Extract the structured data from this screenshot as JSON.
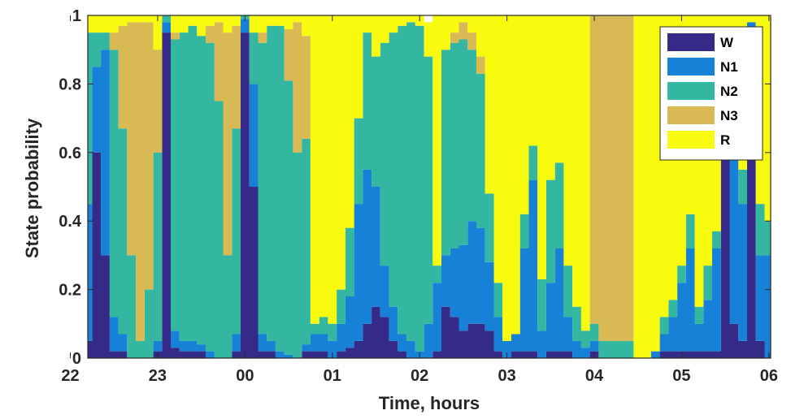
{
  "chart_data": {
    "type": "area",
    "stacked": true,
    "xlabel": "Time, hours",
    "ylabel": "State probability",
    "xlim": [
      22.2,
      30.02
    ],
    "ylim": [
      0,
      1
    ],
    "x_ticks": [
      22,
      23,
      24,
      25,
      26,
      27,
      28,
      29,
      30
    ],
    "x_tick_labels": [
      "22",
      "23",
      "00",
      "01",
      "02",
      "03",
      "04",
      "05",
      "06"
    ],
    "y_ticks": [
      0,
      0.2,
      0.4,
      0.6,
      0.8,
      1
    ],
    "y_tick_labels": [
      "0",
      "0.2",
      "0.4",
      "0.6",
      "0.8",
      "1"
    ],
    "grid": false,
    "legend": {
      "position": "top-right"
    },
    "series_colors": {
      "W": "#352a87",
      "N1": "#1781d8",
      "N2": "#33b7a0",
      "N3": "#d8b954",
      "R": "#f9fb0e"
    },
    "x": [
      22.2,
      22.3,
      22.4,
      22.5,
      22.6,
      22.7,
      22.8,
      22.9,
      23.0,
      23.1,
      23.2,
      23.3,
      23.4,
      23.5,
      23.6,
      23.7,
      23.8,
      23.9,
      24.0,
      24.1,
      24.2,
      24.3,
      24.4,
      24.5,
      24.6,
      24.7,
      24.8,
      24.9,
      25.0,
      25.1,
      25.2,
      25.3,
      25.4,
      25.5,
      25.6,
      25.7,
      25.8,
      25.9,
      26.0,
      26.1,
      26.2,
      26.3,
      26.4,
      26.5,
      26.6,
      26.7,
      26.8,
      26.9,
      27.0,
      27.1,
      27.2,
      27.3,
      27.4,
      27.5,
      27.6,
      27.7,
      27.8,
      27.9,
      28.0,
      28.1,
      28.2,
      28.3,
      28.4,
      28.5,
      28.6,
      28.7,
      28.8,
      28.9,
      29.0,
      29.1,
      29.2,
      29.3,
      29.4,
      29.5,
      29.6,
      29.7,
      29.8,
      29.9,
      30.0
    ],
    "series": [
      {
        "name": "W",
        "values": [
          0.05,
          0.6,
          0.3,
          0.02,
          0.02,
          0.0,
          0.0,
          0.0,
          0.02,
          0.95,
          0.03,
          0.02,
          0.02,
          0.02,
          0.0,
          0.0,
          0.0,
          0.02,
          0.95,
          0.5,
          0.02,
          0.02,
          0.0,
          0.0,
          0.0,
          0.02,
          0.02,
          0.02,
          0.0,
          0.02,
          0.03,
          0.05,
          0.1,
          0.15,
          0.12,
          0.05,
          0.02,
          0.0,
          0.0,
          0.0,
          0.02,
          0.15,
          0.12,
          0.08,
          0.1,
          0.1,
          0.08,
          0.02,
          0.0,
          0.02,
          0.02,
          0.02,
          0.0,
          0.02,
          0.02,
          0.02,
          0.0,
          0.0,
          0.02,
          0.0,
          0.0,
          0.0,
          0.0,
          0.0,
          0.0,
          0.0,
          0.02,
          0.02,
          0.02,
          0.02,
          0.02,
          0.02,
          0.02,
          0.9,
          0.1,
          0.05,
          0.95,
          0.05,
          0.0
        ]
      },
      {
        "name": "N1",
        "values": [
          0.4,
          0.25,
          0.6,
          0.1,
          0.05,
          0.0,
          0.0,
          0.0,
          0.03,
          0.03,
          0.05,
          0.03,
          0.03,
          0.02,
          0.02,
          0.0,
          0.0,
          0.05,
          0.04,
          0.3,
          0.05,
          0.03,
          0.02,
          0.01,
          0.0,
          0.02,
          0.05,
          0.05,
          0.05,
          0.08,
          0.15,
          0.4,
          0.45,
          0.35,
          0.15,
          0.1,
          0.05,
          0.05,
          0.02,
          0.1,
          0.2,
          0.15,
          0.2,
          0.25,
          0.3,
          0.28,
          0.2,
          0.1,
          0.05,
          0.05,
          0.3,
          0.5,
          0.08,
          0.2,
          0.3,
          0.1,
          0.05,
          0.03,
          0.03,
          0.0,
          0.0,
          0.0,
          0.0,
          0.0,
          0.0,
          0.02,
          0.05,
          0.1,
          0.2,
          0.3,
          0.08,
          0.15,
          0.3,
          0.05,
          0.5,
          0.4,
          0.03,
          0.25,
          0.3
        ]
      },
      {
        "name": "N2",
        "values": [
          0.5,
          0.1,
          0.05,
          0.78,
          0.6,
          0.3,
          0.05,
          0.2,
          0.55,
          0.02,
          0.85,
          0.9,
          0.92,
          0.9,
          0.9,
          0.75,
          0.3,
          0.6,
          0.01,
          0.15,
          0.85,
          0.92,
          0.95,
          0.8,
          0.6,
          0.6,
          0.03,
          0.05,
          0.05,
          0.1,
          0.2,
          0.25,
          0.4,
          0.38,
          0.65,
          0.8,
          0.9,
          0.93,
          0.95,
          0.78,
          0.05,
          0.6,
          0.6,
          0.6,
          0.5,
          0.45,
          0.2,
          0.1,
          0.0,
          0.0,
          0.1,
          0.1,
          0.15,
          0.3,
          0.25,
          0.15,
          0.1,
          0.05,
          0.05,
          0.05,
          0.05,
          0.05,
          0.05,
          0.0,
          0.0,
          0.0,
          0.05,
          0.05,
          0.05,
          0.1,
          0.05,
          0.1,
          0.05,
          0.0,
          0.05,
          0.1,
          0.0,
          0.15,
          0.1
        ]
      },
      {
        "name": "N3",
        "values": [
          0.0,
          0.0,
          0.0,
          0.05,
          0.3,
          0.68,
          0.93,
          0.78,
          0.3,
          0.0,
          0.02,
          0.0,
          0.0,
          0.0,
          0.05,
          0.23,
          0.65,
          0.3,
          0.0,
          0.0,
          0.03,
          0.0,
          0.0,
          0.15,
          0.38,
          0.3,
          0.0,
          0.0,
          0.0,
          0.0,
          0.0,
          0.0,
          0.0,
          0.0,
          0.0,
          0.0,
          0.0,
          0.0,
          0.0,
          0.0,
          0.0,
          0.0,
          0.03,
          0.05,
          0.05,
          0.05,
          0.0,
          0.0,
          0.0,
          0.0,
          0.0,
          0.0,
          0.0,
          0.0,
          0.0,
          0.0,
          0.0,
          0.0,
          0.9,
          0.95,
          0.95,
          0.95,
          0.95,
          0.0,
          0.0,
          0.0,
          0.0,
          0.0,
          0.0,
          0.0,
          0.0,
          0.0,
          0.0,
          0.0,
          0.0,
          0.0,
          0.0,
          0.0,
          0.0
        ]
      },
      {
        "name": "R",
        "values": [
          0.05,
          0.05,
          0.05,
          0.05,
          0.03,
          0.02,
          0.02,
          0.02,
          0.1,
          0.0,
          0.05,
          0.05,
          0.03,
          0.06,
          0.03,
          0.02,
          0.05,
          0.03,
          0.0,
          0.05,
          0.05,
          0.03,
          0.03,
          0.04,
          0.02,
          0.06,
          0.9,
          0.88,
          0.9,
          0.8,
          0.62,
          0.3,
          0.05,
          0.12,
          0.08,
          0.05,
          0.03,
          0.02,
          0.03,
          0.1,
          0.73,
          0.1,
          0.05,
          0.02,
          0.05,
          0.12,
          0.52,
          0.78,
          0.95,
          0.93,
          0.58,
          0.38,
          0.77,
          0.48,
          0.43,
          0.73,
          0.85,
          0.92,
          0.0,
          0.0,
          0.0,
          0.0,
          0.0,
          1.0,
          1.0,
          0.98,
          0.88,
          0.83,
          0.73,
          0.58,
          0.85,
          0.73,
          0.63,
          0.05,
          0.35,
          0.45,
          0.02,
          0.55,
          0.6
        ]
      }
    ]
  }
}
